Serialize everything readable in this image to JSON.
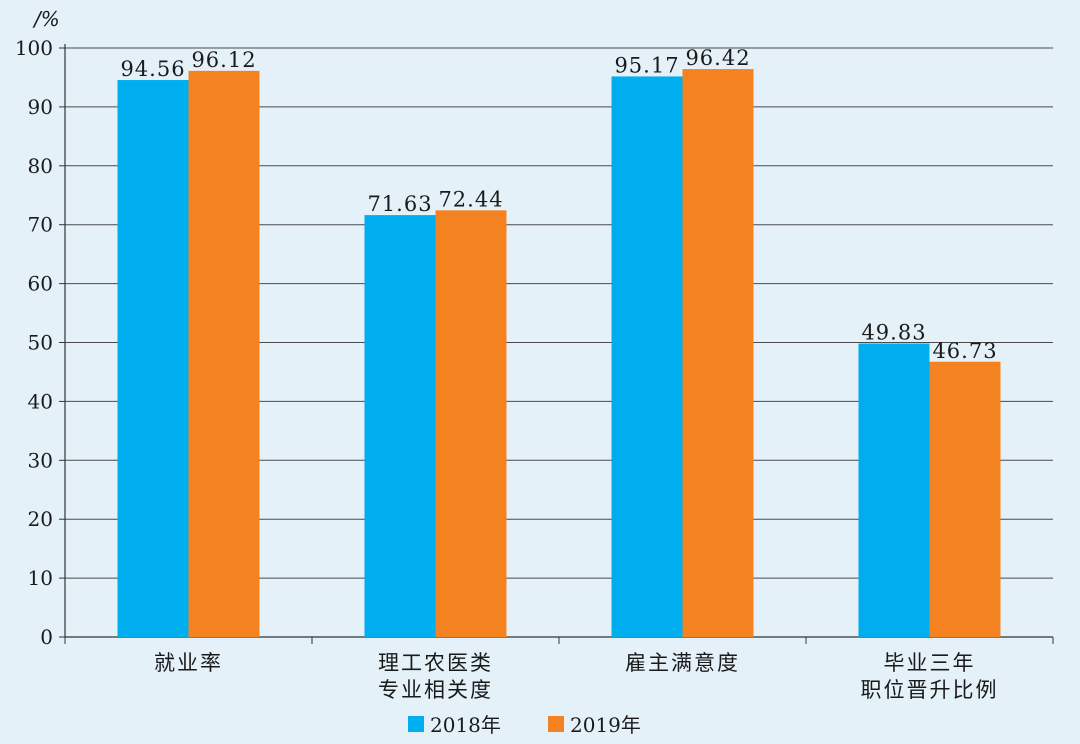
{
  "chart_data": {
    "type": "bar",
    "ylabel": "/%",
    "ylim": [
      0,
      100
    ],
    "yticks": [
      0,
      10,
      20,
      30,
      40,
      50,
      60,
      70,
      80,
      90,
      100
    ],
    "grid": true,
    "legend_position": "bottom",
    "categories": [
      [
        "就业率"
      ],
      [
        "理工农医类",
        "专业相关度"
      ],
      [
        "雇主满意度"
      ],
      [
        "毕业三年",
        "职位晋升比例"
      ]
    ],
    "series": [
      {
        "name": "2018年",
        "color": "#00aeef",
        "values": [
          94.56,
          71.63,
          95.17,
          49.83
        ],
        "labels": [
          "94.56",
          "71.63",
          "95.17",
          "49.83"
        ]
      },
      {
        "name": "2019年",
        "color": "#f58220",
        "values": [
          96.12,
          72.44,
          96.42,
          46.73
        ],
        "labels": [
          "96.12",
          "72.44",
          "96.42",
          "46.73"
        ]
      }
    ],
    "background": "#e4f1f9"
  }
}
